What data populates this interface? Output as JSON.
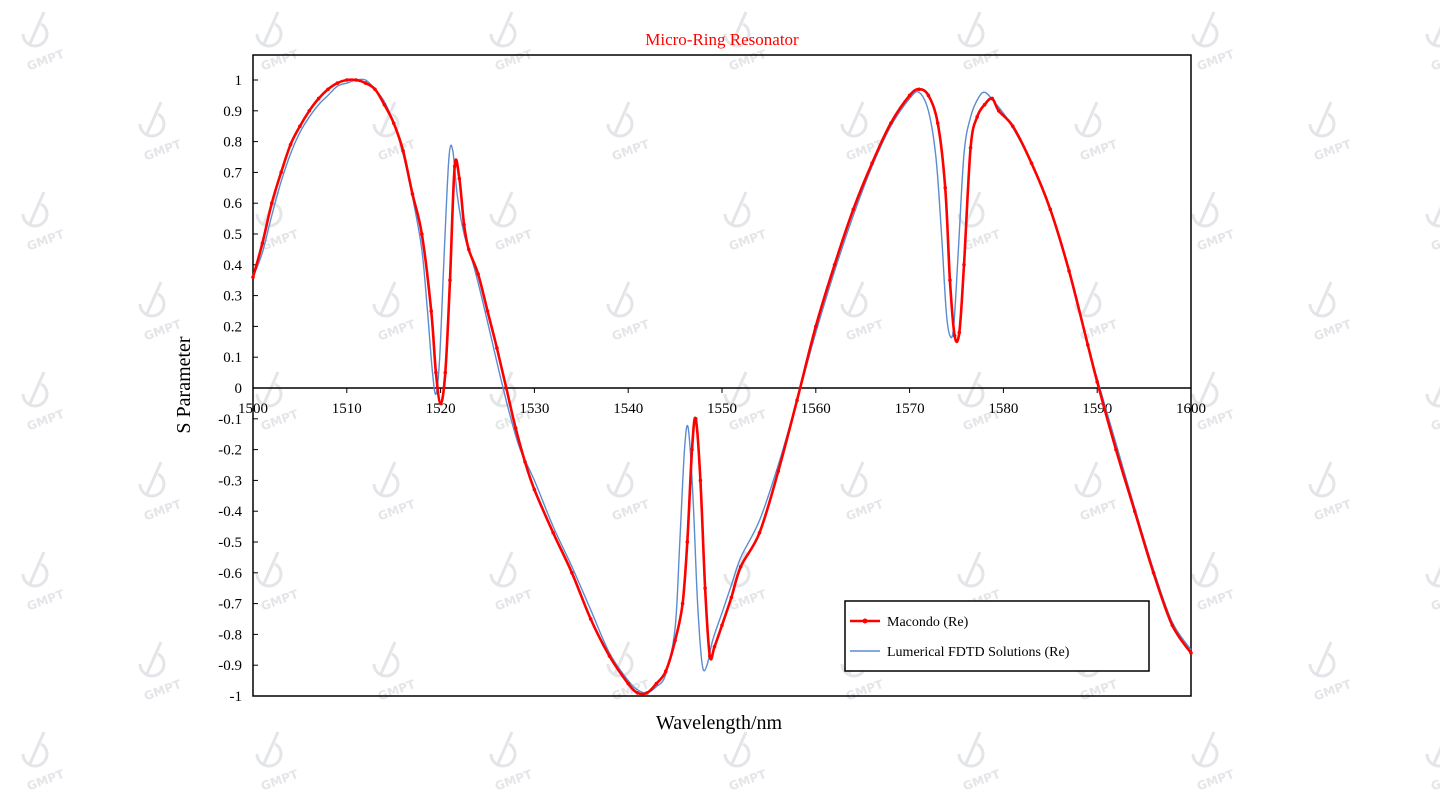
{
  "colors": {
    "series_1": "#ff0000",
    "series_2": "#5b8bd0",
    "title": "#ff0000",
    "watermark": "#b9bcc4"
  },
  "watermark": {
    "text": "GMPT",
    "icon": "gmpt-logo-icon"
  },
  "chart_data": {
    "type": "line",
    "title": "Micro-Ring Resonator",
    "xlabel": "Wavelength/nm",
    "ylabel": "S Parameter",
    "xlim": [
      1500,
      1600
    ],
    "ylim": [
      -1,
      1.05
    ],
    "x_ticks": [
      1500,
      1510,
      1520,
      1530,
      1540,
      1550,
      1560,
      1570,
      1580,
      1590,
      1600
    ],
    "y_ticks": [
      1,
      0.9,
      0.8,
      0.7,
      0.6,
      0.5,
      0.4,
      0.3,
      0.2,
      0.1,
      0,
      -0.1,
      -0.2,
      -0.3,
      -0.4,
      -0.5,
      -0.6,
      -0.7,
      -0.8,
      -0.9,
      -1
    ],
    "legend_position": "bottom-right",
    "grid": false,
    "series": [
      {
        "name": "Macondo (Re)",
        "color": "#ff0000",
        "marker": "dot",
        "points": [
          [
            1500,
            0.36
          ],
          [
            1501,
            0.47
          ],
          [
            1502,
            0.6
          ],
          [
            1503,
            0.7
          ],
          [
            1504,
            0.79
          ],
          [
            1505,
            0.85
          ],
          [
            1506,
            0.9
          ],
          [
            1507,
            0.94
          ],
          [
            1508,
            0.97
          ],
          [
            1509,
            0.99
          ],
          [
            1510,
            1.0
          ],
          [
            1511,
            1.0
          ],
          [
            1512,
            0.99
          ],
          [
            1513,
            0.97
          ],
          [
            1514,
            0.92
          ],
          [
            1515,
            0.86
          ],
          [
            1516,
            0.77
          ],
          [
            1517,
            0.63
          ],
          [
            1518,
            0.5
          ],
          [
            1519,
            0.25
          ],
          [
            1519.5,
            0.05
          ],
          [
            1520,
            -0.05
          ],
          [
            1520.5,
            0.05
          ],
          [
            1521,
            0.35
          ],
          [
            1521.5,
            0.72
          ],
          [
            1522,
            0.68
          ],
          [
            1522.5,
            0.53
          ],
          [
            1523,
            0.45
          ],
          [
            1524,
            0.37
          ],
          [
            1525,
            0.25
          ],
          [
            1526,
            0.13
          ],
          [
            1527,
            0.0
          ],
          [
            1528,
            -0.13
          ],
          [
            1529,
            -0.24
          ],
          [
            1530,
            -0.33
          ],
          [
            1532,
            -0.47
          ],
          [
            1534,
            -0.6
          ],
          [
            1536,
            -0.75
          ],
          [
            1538,
            -0.87
          ],
          [
            1540,
            -0.96
          ],
          [
            1541,
            -0.99
          ],
          [
            1542,
            -0.99
          ],
          [
            1543,
            -0.96
          ],
          [
            1544,
            -0.92
          ],
          [
            1545,
            -0.82
          ],
          [
            1545.8,
            -0.7
          ],
          [
            1546.3,
            -0.5
          ],
          [
            1546.8,
            -0.2
          ],
          [
            1547.2,
            -0.1
          ],
          [
            1547.7,
            -0.3
          ],
          [
            1548.2,
            -0.65
          ],
          [
            1548.7,
            -0.87
          ],
          [
            1549.2,
            -0.84
          ],
          [
            1550,
            -0.77
          ],
          [
            1551,
            -0.68
          ],
          [
            1552,
            -0.58
          ],
          [
            1554,
            -0.47
          ],
          [
            1556,
            -0.27
          ],
          [
            1558,
            -0.04
          ],
          [
            1560,
            0.2
          ],
          [
            1562,
            0.4
          ],
          [
            1564,
            0.58
          ],
          [
            1566,
            0.73
          ],
          [
            1568,
            0.86
          ],
          [
            1570,
            0.95
          ],
          [
            1571,
            0.97
          ],
          [
            1572,
            0.95
          ],
          [
            1573,
            0.86
          ],
          [
            1573.8,
            0.65
          ],
          [
            1574.3,
            0.35
          ],
          [
            1574.8,
            0.17
          ],
          [
            1575.3,
            0.18
          ],
          [
            1575.8,
            0.4
          ],
          [
            1576.5,
            0.78
          ],
          [
            1577.2,
            0.88
          ],
          [
            1578,
            0.92
          ],
          [
            1578.8,
            0.94
          ],
          [
            1579.5,
            0.9
          ],
          [
            1581,
            0.85
          ],
          [
            1583,
            0.73
          ],
          [
            1585,
            0.58
          ],
          [
            1587,
            0.38
          ],
          [
            1589,
            0.14
          ],
          [
            1590,
            0.02
          ],
          [
            1592,
            -0.2
          ],
          [
            1594,
            -0.4
          ],
          [
            1596,
            -0.6
          ],
          [
            1598,
            -0.77
          ],
          [
            1600,
            -0.86
          ]
        ]
      },
      {
        "name": "Lumerical FDTD Solutions (Re)",
        "color": "#5b8bd0",
        "marker": "none",
        "points": [
          [
            1500,
            0.36
          ],
          [
            1501,
            0.44
          ],
          [
            1502,
            0.56
          ],
          [
            1503,
            0.67
          ],
          [
            1504,
            0.76
          ],
          [
            1505,
            0.83
          ],
          [
            1506,
            0.88
          ],
          [
            1507,
            0.92
          ],
          [
            1508,
            0.95
          ],
          [
            1509,
            0.98
          ],
          [
            1510,
            0.99
          ],
          [
            1511,
            1.0
          ],
          [
            1512,
            1.0
          ],
          [
            1513,
            0.97
          ],
          [
            1514,
            0.93
          ],
          [
            1515,
            0.86
          ],
          [
            1516,
            0.76
          ],
          [
            1517,
            0.62
          ],
          [
            1518,
            0.45
          ],
          [
            1518.6,
            0.25
          ],
          [
            1519.1,
            0.06
          ],
          [
            1519.5,
            -0.02
          ],
          [
            1519.9,
            0.1
          ],
          [
            1520.4,
            0.45
          ],
          [
            1520.9,
            0.75
          ],
          [
            1521.3,
            0.77
          ],
          [
            1521.8,
            0.62
          ],
          [
            1522.5,
            0.5
          ],
          [
            1523.5,
            0.4
          ],
          [
            1524.5,
            0.28
          ],
          [
            1525.5,
            0.15
          ],
          [
            1526.5,
            0.02
          ],
          [
            1527.5,
            -0.1
          ],
          [
            1528.5,
            -0.2
          ],
          [
            1530,
            -0.3
          ],
          [
            1532,
            -0.45
          ],
          [
            1534,
            -0.58
          ],
          [
            1536,
            -0.72
          ],
          [
            1538,
            -0.86
          ],
          [
            1540,
            -0.95
          ],
          [
            1541,
            -0.98
          ],
          [
            1542,
            -0.99
          ],
          [
            1543,
            -0.97
          ],
          [
            1544,
            -0.93
          ],
          [
            1545,
            -0.78
          ],
          [
            1545.5,
            -0.5
          ],
          [
            1546,
            -0.2
          ],
          [
            1546.4,
            -0.13
          ],
          [
            1546.9,
            -0.35
          ],
          [
            1547.4,
            -0.7
          ],
          [
            1547.9,
            -0.9
          ],
          [
            1548.4,
            -0.9
          ],
          [
            1549,
            -0.82
          ],
          [
            1550,
            -0.73
          ],
          [
            1551,
            -0.64
          ],
          [
            1552,
            -0.55
          ],
          [
            1554,
            -0.43
          ],
          [
            1556,
            -0.25
          ],
          [
            1558,
            -0.04
          ],
          [
            1560,
            0.18
          ],
          [
            1562,
            0.38
          ],
          [
            1564,
            0.56
          ],
          [
            1566,
            0.72
          ],
          [
            1568,
            0.85
          ],
          [
            1570,
            0.94
          ],
          [
            1571,
            0.96
          ],
          [
            1572,
            0.9
          ],
          [
            1572.8,
            0.75
          ],
          [
            1573.4,
            0.5
          ],
          [
            1573.9,
            0.25
          ],
          [
            1574.3,
            0.17
          ],
          [
            1574.7,
            0.2
          ],
          [
            1575.2,
            0.45
          ],
          [
            1575.8,
            0.76
          ],
          [
            1576.5,
            0.88
          ],
          [
            1577.3,
            0.94
          ],
          [
            1578,
            0.96
          ],
          [
            1579,
            0.93
          ],
          [
            1580.5,
            0.87
          ],
          [
            1582.5,
            0.76
          ],
          [
            1584.5,
            0.62
          ],
          [
            1586.5,
            0.43
          ],
          [
            1588.5,
            0.2
          ],
          [
            1590,
            0.03
          ],
          [
            1592,
            -0.18
          ],
          [
            1594,
            -0.39
          ],
          [
            1596,
            -0.59
          ],
          [
            1598,
            -0.76
          ],
          [
            1600,
            -0.85
          ]
        ]
      }
    ]
  }
}
